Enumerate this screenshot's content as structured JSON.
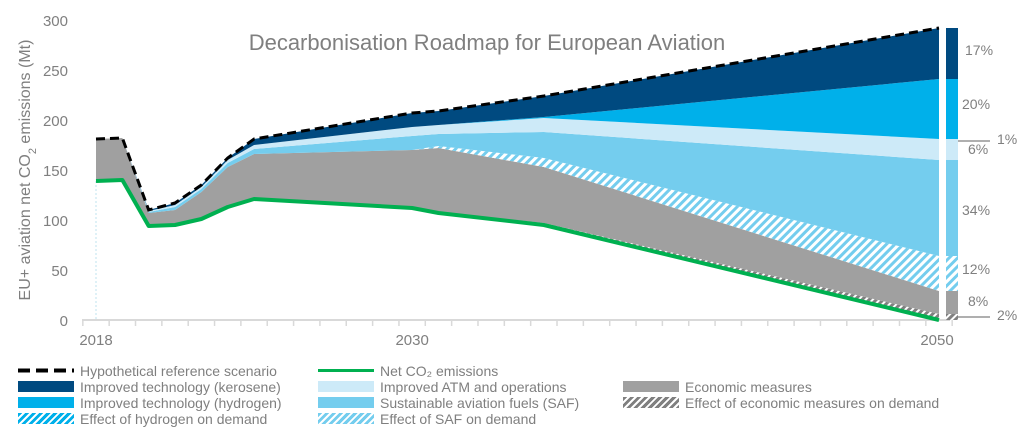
{
  "chart_data": {
    "type": "area",
    "title": "Decarbonisation Roadmap for European Aviation",
    "xlabel": "",
    "ylabel": "EU+ aviation net CO2 emissions (Mt)",
    "ylim": [
      0,
      300
    ],
    "xlim": [
      2017.5,
      2050.5
    ],
    "yticks": [
      0,
      50,
      100,
      150,
      200,
      250,
      300
    ],
    "xtick_labels": [
      "2018",
      "2030",
      "2050"
    ],
    "grid": false,
    "legend_position": "bottom",
    "x": [
      2018,
      2019,
      2020,
      2021,
      2022,
      2023,
      2024,
      2030,
      2031,
      2035,
      2050
    ],
    "reference": [
      181,
      182,
      110,
      117,
      135,
      162,
      181,
      207,
      209,
      224,
      292
    ],
    "net_co2": [
      139,
      140,
      94,
      95,
      101,
      113,
      121,
      112,
      107,
      95,
      0
    ],
    "boundaries": {
      "econ_demand_top": [
        139,
        140,
        94,
        95,
        101,
        113,
        121,
        112,
        108,
        97,
        6
      ],
      "econ_measures_top": [
        181,
        182,
        107,
        110,
        128,
        153,
        166,
        170,
        172,
        153,
        29
      ],
      "saf_demand_top": [
        181,
        182,
        107,
        110,
        128,
        153,
        166,
        170,
        174,
        162,
        64
      ],
      "saf_top": [
        181,
        182,
        108,
        113,
        131,
        157,
        171,
        184,
        186,
        188,
        160
      ],
      "atm_top": [
        181,
        182,
        109,
        115,
        133,
        160,
        175,
        193,
        195,
        202,
        181
      ],
      "h2_demand_top": [
        181,
        182,
        109,
        115,
        133,
        160,
        175,
        193,
        195,
        202,
        181
      ],
      "hydrogen_top": [
        181,
        182,
        109,
        115,
        133,
        160,
        175,
        193,
        195,
        203,
        241
      ]
    },
    "series": [
      {
        "name": "Hypothetical reference scenario",
        "style": "dashed-line",
        "color": "#000000"
      },
      {
        "name": "Net CO₂ emissions",
        "style": "line",
        "color": "#00b050"
      },
      {
        "name": "Improved technology (kerosene)",
        "style": "fill",
        "color": "#004a80",
        "share_2050": "17%"
      },
      {
        "name": "Improved ATM and operations",
        "style": "fill",
        "color": "#cdeaf8",
        "share_2050": "6%"
      },
      {
        "name": "Economic measures",
        "style": "fill",
        "color": "#a0a0a0",
        "share_2050": "8%"
      },
      {
        "name": "Improved technology (hydrogen)",
        "style": "fill",
        "color": "#00b0ea",
        "share_2050": "20%"
      },
      {
        "name": "Sustainable aviation fuels (SAF)",
        "style": "fill",
        "color": "#74cdee",
        "share_2050": "34%"
      },
      {
        "name": "Effect of economic measures on demand",
        "style": "hatch",
        "color": "#808080",
        "share_2050": "2%"
      },
      {
        "name": "Effect of hydrogen on demand",
        "style": "hatch",
        "color": "#00b0ea",
        "share_2050": "1%"
      },
      {
        "name": "Effect of SAF on demand",
        "style": "hatch",
        "color": "#74cdee",
        "share_2050": "12%"
      }
    ],
    "bar_2050_labels": [
      "17%",
      "20%",
      "1%",
      "6%",
      "34%",
      "12%",
      "8%",
      "2%"
    ]
  },
  "legend": [
    {
      "label": "Hypothetical reference scenario"
    },
    {
      "label": "Net CO₂ emissions"
    },
    {
      "label": "Improved technology (kerosene)"
    },
    {
      "label": "Improved ATM and operations"
    },
    {
      "label": "Economic measures"
    },
    {
      "label": "Improved technology (hydrogen)"
    },
    {
      "label": "Sustainable aviation fuels (SAF)"
    },
    {
      "label": "Effect of economic measures on demand"
    },
    {
      "label": "Effect of hydrogen on demand"
    },
    {
      "label": "Effect of SAF on demand"
    }
  ]
}
